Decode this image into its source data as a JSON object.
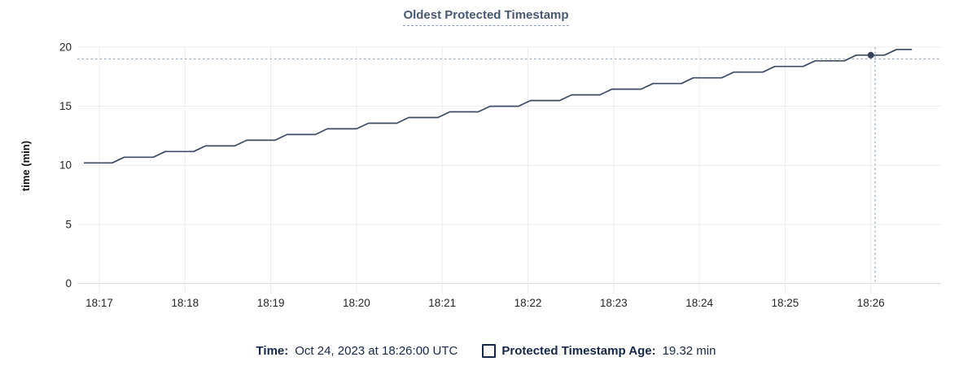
{
  "header": {
    "title": "Oldest Protected Timestamp"
  },
  "chart_data": {
    "type": "line",
    "title": "Oldest Protected Timestamp",
    "xlabel": "",
    "ylabel": "time (min)",
    "x_ticks": [
      "18:17",
      "18:18",
      "18:19",
      "18:20",
      "18:21",
      "18:22",
      "18:23",
      "18:24",
      "18:25",
      "18:26"
    ],
    "y_ticks": [
      0,
      5,
      10,
      15,
      20
    ],
    "ylim": [
      0,
      20
    ],
    "grid": true,
    "legend_position": "bottom",
    "series": [
      {
        "name": "Protected Timestamp Age",
        "unit": "min",
        "points_note": "x = minutes after 18:17 UTC, y = minutes",
        "points": [
          [
            -0.18,
            10.2
          ],
          [
            0.15,
            10.2
          ],
          [
            0.29,
            10.68
          ],
          [
            0.63,
            10.68
          ],
          [
            0.77,
            11.16
          ],
          [
            1.1,
            11.16
          ],
          [
            1.24,
            11.64
          ],
          [
            1.58,
            11.64
          ],
          [
            1.72,
            12.12
          ],
          [
            2.05,
            12.12
          ],
          [
            2.19,
            12.6
          ],
          [
            2.52,
            12.6
          ],
          [
            2.66,
            13.08
          ],
          [
            3.0,
            13.08
          ],
          [
            3.14,
            13.56
          ],
          [
            3.47,
            13.56
          ],
          [
            3.61,
            14.04
          ],
          [
            3.95,
            14.04
          ],
          [
            4.09,
            14.52
          ],
          [
            4.42,
            14.52
          ],
          [
            4.56,
            15.0
          ],
          [
            4.89,
            15.0
          ],
          [
            5.03,
            15.48
          ],
          [
            5.37,
            15.48
          ],
          [
            5.51,
            15.96
          ],
          [
            5.84,
            15.96
          ],
          [
            5.98,
            16.44
          ],
          [
            6.32,
            16.44
          ],
          [
            6.46,
            16.92
          ],
          [
            6.79,
            16.92
          ],
          [
            6.93,
            17.4
          ],
          [
            7.26,
            17.4
          ],
          [
            7.4,
            17.88
          ],
          [
            7.74,
            17.88
          ],
          [
            7.88,
            18.36
          ],
          [
            8.21,
            18.36
          ],
          [
            8.35,
            18.84
          ],
          [
            8.69,
            18.84
          ],
          [
            8.83,
            19.32
          ],
          [
            9.16,
            19.32
          ],
          [
            9.3,
            19.8
          ],
          [
            9.48,
            19.8
          ]
        ]
      }
    ],
    "highlight": {
      "x": 9.0,
      "y": 19.32,
      "crosshair_x": 9.05,
      "crosshair_y": 19.0,
      "time": "18:26:00",
      "value": "19.32 min"
    }
  },
  "legend": {
    "time_label": "Time:",
    "time_value": "Oct 24, 2023 at 18:26:00 UTC",
    "series_label": "Protected Timestamp Age:",
    "series_value": "19.32 min"
  },
  "colors": {
    "line": "#3c4c64",
    "dot": "#33425a",
    "grid": "#ececec",
    "axis": "#dcdcdc",
    "crosshair": "#94a8bb",
    "title": "#475872",
    "title_underline": "#8b9cb5",
    "legend_text": "#152849",
    "tick_text": "#262626"
  }
}
